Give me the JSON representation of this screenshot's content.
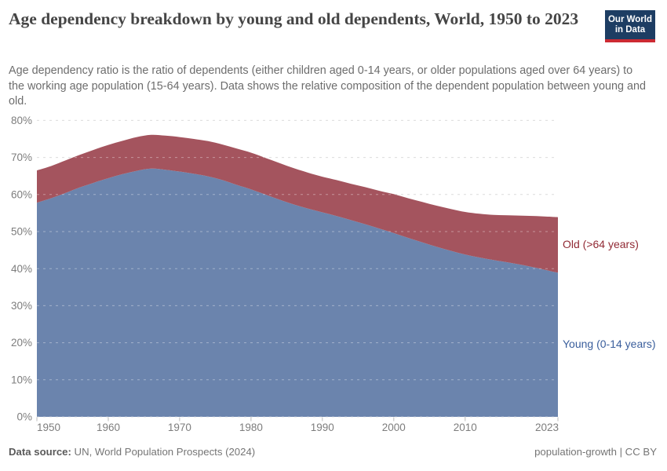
{
  "header": {
    "title": "Age dependency breakdown by young and old dependents, World, 1950 to 2023",
    "subtitle": "Age dependency ratio is the ratio of dependents (either children aged 0-14 years, or older populations aged over 64 years) to the working age population (15-64 years). Data shows the relative composition of the dependent population between young and old.",
    "logo": {
      "line1": "Our World",
      "line2": "in Data"
    }
  },
  "chart_data": {
    "type": "area",
    "stacked": true,
    "title": "Age dependency breakdown by young and old dependents, World, 1950 to 2023",
    "xlabel": "",
    "ylabel": "",
    "ylim": [
      0,
      80
    ],
    "xlim": [
      1950,
      2023
    ],
    "grid": "horizontal-dashed",
    "legend_position": "right-edge-labels",
    "x": [
      1950,
      1952,
      1954,
      1956,
      1958,
      1960,
      1962,
      1964,
      1966,
      1968,
      1970,
      1972,
      1974,
      1976,
      1978,
      1980,
      1982,
      1984,
      1986,
      1988,
      1990,
      1992,
      1994,
      1996,
      1998,
      2000,
      2002,
      2004,
      2006,
      2008,
      2010,
      2012,
      2014,
      2016,
      2018,
      2020,
      2022,
      2023
    ],
    "series": [
      {
        "name": "Young (0-14 years)",
        "color": "#6b84ad",
        "label_color": "#3a5e9c",
        "values": [
          57.8,
          59.0,
          60.4,
          61.9,
          63.2,
          64.4,
          65.5,
          66.4,
          67.0,
          66.7,
          66.2,
          65.6,
          64.9,
          63.9,
          62.6,
          61.4,
          60.0,
          58.6,
          57.3,
          56.2,
          55.2,
          54.2,
          53.1,
          52.0,
          50.8,
          49.6,
          48.3,
          47.1,
          45.9,
          44.8,
          43.8,
          43.0,
          42.3,
          41.7,
          41.0,
          40.2,
          39.3,
          38.9
        ]
      },
      {
        "name": "Old (>64 years)",
        "color": "#a4545e",
        "label_color": "#912a34",
        "values": [
          8.7,
          8.7,
          8.8,
          8.8,
          8.9,
          9.0,
          9.0,
          9.1,
          9.1,
          9.2,
          9.3,
          9.4,
          9.5,
          9.6,
          9.8,
          9.9,
          9.9,
          9.9,
          9.8,
          9.7,
          9.6,
          9.7,
          9.8,
          10.0,
          10.2,
          10.5,
          10.7,
          10.9,
          11.1,
          11.3,
          11.5,
          11.8,
          12.2,
          12.7,
          13.3,
          14.0,
          14.7,
          15.0
        ]
      }
    ],
    "yticks": [
      "0%",
      "10%",
      "20%",
      "30%",
      "40%",
      "50%",
      "60%",
      "70%",
      "80%"
    ],
    "ytick_values": [
      0,
      10,
      20,
      30,
      40,
      50,
      60,
      70,
      80
    ],
    "xticks": [
      1950,
      1960,
      1970,
      1980,
      1990,
      2000,
      2010,
      2023
    ],
    "colors": {
      "gridline": "#dcdcdc",
      "tick_text": "#7d7d7d",
      "tick_mark": "#bbbbbb"
    }
  },
  "footer": {
    "source_label": "Data source:",
    "source_value": " UN, World Population Prospects (2024)",
    "right": "population-growth | CC BY"
  }
}
